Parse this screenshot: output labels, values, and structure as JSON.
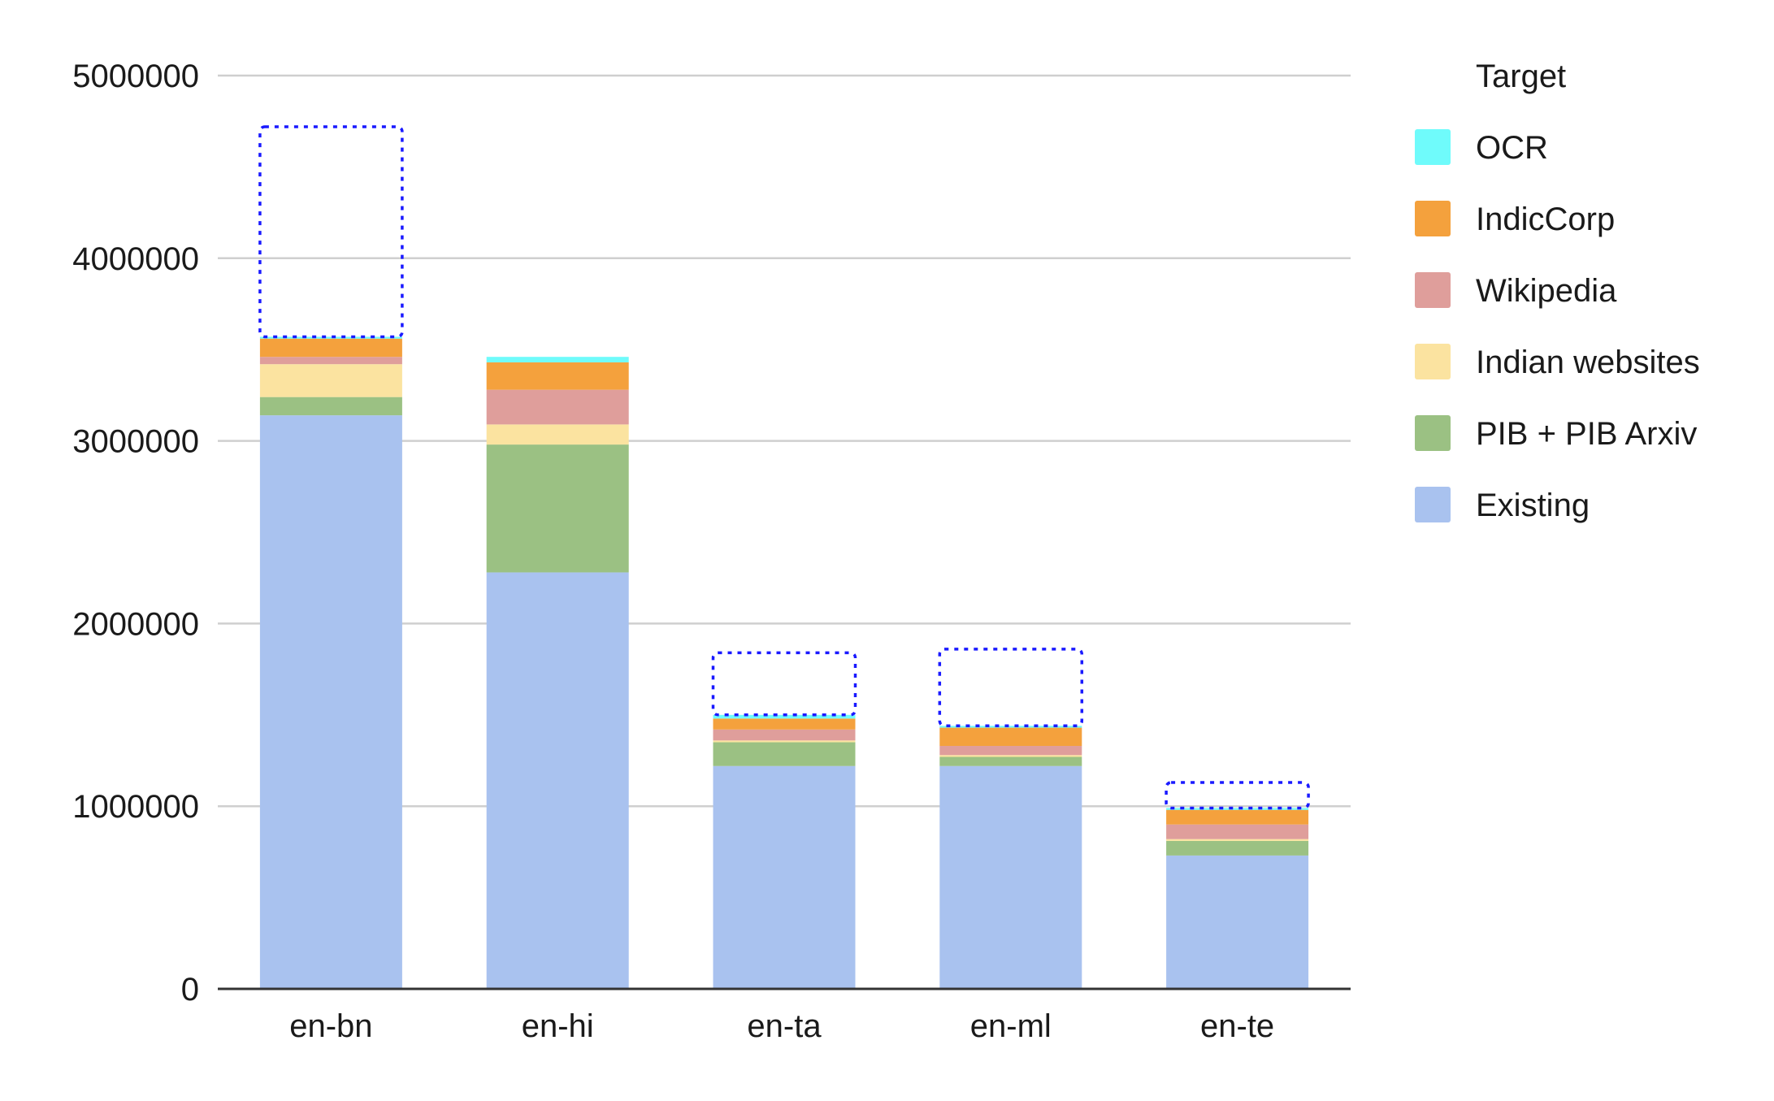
{
  "chart_data": {
    "type": "bar",
    "stacked": true,
    "categories": [
      "en-bn",
      "en-hi",
      "en-ta",
      "en-ml",
      "en-te"
    ],
    "series": [
      {
        "name": "Existing",
        "color": "#a9c2ef",
        "values": [
          3140000,
          2280000,
          1220000,
          1220000,
          730000
        ]
      },
      {
        "name": "PIB + PIB Arxiv",
        "color": "#9bc183",
        "values": [
          100000,
          700000,
          130000,
          50000,
          80000
        ]
      },
      {
        "name": "Indian websites",
        "color": "#fbe3a0",
        "values": [
          180000,
          110000,
          10000,
          10000,
          10000
        ]
      },
      {
        "name": "Wikipedia",
        "color": "#df9e9b",
        "values": [
          40000,
          190000,
          60000,
          50000,
          80000
        ]
      },
      {
        "name": "IndicCorp",
        "color": "#f4a13d",
        "values": [
          100000,
          150000,
          60000,
          100000,
          80000
        ]
      },
      {
        "name": "OCR",
        "color": "#6ffbfb",
        "values": [
          10000,
          30000,
          20000,
          10000,
          10000
        ]
      }
    ],
    "targets": [
      4720000,
      3460000,
      1840000,
      1860000,
      1130000
    ],
    "target_marker": {
      "style": "dotted box",
      "color": "#1a1aff"
    },
    "yticks": [
      "0",
      "1000000",
      "2000000",
      "3000000",
      "4000000",
      "5000000"
    ],
    "ylim": [
      0,
      5000000
    ],
    "grid": true,
    "legend_title": "Target",
    "legend_position": "right",
    "title": "",
    "xlabel": "",
    "ylabel": ""
  }
}
